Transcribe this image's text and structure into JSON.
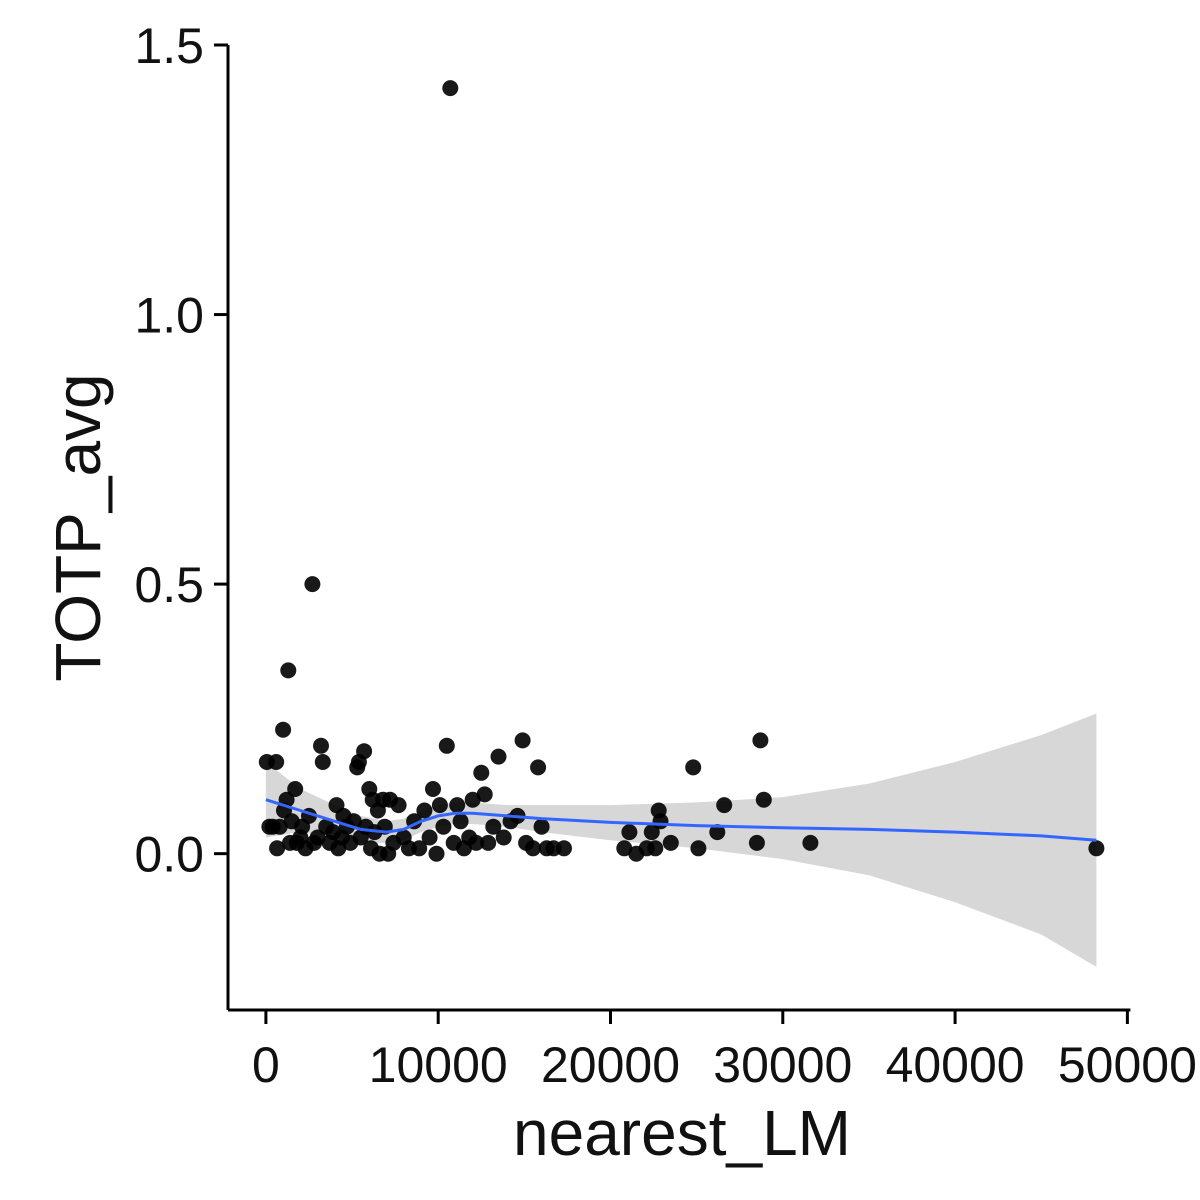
{
  "chart_data": {
    "type": "scatter",
    "xlabel": "nearest_LM",
    "ylabel": "TOTP_avg",
    "xlim": [
      -2200,
      50500
    ],
    "ylim": [
      -0.29,
      1.5
    ],
    "x_ticks": [
      0,
      10000,
      20000,
      30000,
      40000,
      50000
    ],
    "x_tick_labels": [
      "0",
      "10000",
      "20000",
      "30000",
      "40000",
      "50000"
    ],
    "y_ticks": [
      0.0,
      0.5,
      1.0,
      1.5
    ],
    "y_tick_labels": [
      "0.0",
      "0.5",
      "1.0",
      "1.5"
    ],
    "grid": false,
    "legend": "none",
    "colors": {
      "points": "#000000",
      "smooth_line": "#3366ff",
      "ribbon": "#d3d3d3",
      "axis": "#000000"
    },
    "points": [
      [
        50,
        0.17
      ],
      [
        200,
        0.05
      ],
      [
        400,
        0.05
      ],
      [
        600,
        0.17
      ],
      [
        650,
        0.01
      ],
      [
        800,
        0.05
      ],
      [
        1000,
        0.23
      ],
      [
        1050,
        0.08
      ],
      [
        1200,
        0.1
      ],
      [
        1300,
        0.34
      ],
      [
        1400,
        0.02
      ],
      [
        1500,
        0.06
      ],
      [
        1700,
        0.12
      ],
      [
        1800,
        0.02
      ],
      [
        2000,
        0.03
      ],
      [
        2100,
        0.05
      ],
      [
        2300,
        0.01
      ],
      [
        2500,
        0.07
      ],
      [
        2700,
        0.5
      ],
      [
        2800,
        0.02
      ],
      [
        3000,
        0.03
      ],
      [
        3200,
        0.2
      ],
      [
        3300,
        0.17
      ],
      [
        3500,
        0.05
      ],
      [
        3700,
        0.02
      ],
      [
        3900,
        0.04
      ],
      [
        4100,
        0.09
      ],
      [
        4200,
        0.01
      ],
      [
        4400,
        0.03
      ],
      [
        4500,
        0.07
      ],
      [
        4700,
        0.05
      ],
      [
        4900,
        0.02
      ],
      [
        5100,
        0.06
      ],
      [
        5300,
        0.16
      ],
      [
        5400,
        0.17
      ],
      [
        5500,
        0.03
      ],
      [
        5700,
        0.19
      ],
      [
        5800,
        0.05
      ],
      [
        6000,
        0.12
      ],
      [
        6100,
        0.01
      ],
      [
        6200,
        0.1
      ],
      [
        6300,
        0.04
      ],
      [
        6500,
        0.08
      ],
      [
        6600,
        0.0
      ],
      [
        6800,
        0.1
      ],
      [
        6900,
        0.05
      ],
      [
        7100,
        0.0
      ],
      [
        7200,
        0.1
      ],
      [
        7400,
        0.02
      ],
      [
        7700,
        0.09
      ],
      [
        8000,
        0.03
      ],
      [
        8300,
        0.01
      ],
      [
        8600,
        0.06
      ],
      [
        8900,
        0.01
      ],
      [
        9200,
        0.08
      ],
      [
        9500,
        0.03
      ],
      [
        9700,
        0.12
      ],
      [
        9900,
        0.0
      ],
      [
        10100,
        0.09
      ],
      [
        10300,
        0.05
      ],
      [
        10500,
        0.2
      ],
      [
        10700,
        1.42
      ],
      [
        10900,
        0.02
      ],
      [
        11100,
        0.09
      ],
      [
        11300,
        0.06
      ],
      [
        11500,
        0.01
      ],
      [
        11800,
        0.03
      ],
      [
        12000,
        0.1
      ],
      [
        12200,
        0.02
      ],
      [
        12500,
        0.15
      ],
      [
        12700,
        0.11
      ],
      [
        12900,
        0.02
      ],
      [
        13200,
        0.05
      ],
      [
        13500,
        0.18
      ],
      [
        13800,
        0.03
      ],
      [
        14200,
        0.06
      ],
      [
        14600,
        0.07
      ],
      [
        14900,
        0.21
      ],
      [
        15100,
        0.02
      ],
      [
        15500,
        0.01
      ],
      [
        15800,
        0.16
      ],
      [
        16000,
        0.05
      ],
      [
        16300,
        0.01
      ],
      [
        16700,
        0.01
      ],
      [
        17300,
        0.01
      ],
      [
        20800,
        0.01
      ],
      [
        21100,
        0.04
      ],
      [
        21500,
        0.0
      ],
      [
        22100,
        0.01
      ],
      [
        22400,
        0.04
      ],
      [
        22600,
        0.01
      ],
      [
        22800,
        0.08
      ],
      [
        22900,
        0.06
      ],
      [
        23500,
        0.02
      ],
      [
        24800,
        0.16
      ],
      [
        25100,
        0.01
      ],
      [
        26200,
        0.04
      ],
      [
        26600,
        0.09
      ],
      [
        28500,
        0.02
      ],
      [
        28700,
        0.21
      ],
      [
        28900,
        0.1
      ],
      [
        31600,
        0.02
      ],
      [
        48200,
        0.01
      ]
    ],
    "smooth": {
      "x": [
        0,
        2000,
        4000,
        5500,
        7000,
        8000,
        9000,
        10000,
        11000,
        12000,
        14000,
        16000,
        20000,
        25000,
        30000,
        35000,
        40000,
        45000,
        48200
      ],
      "y": [
        0.1,
        0.08,
        0.06,
        0.045,
        0.04,
        0.045,
        0.06,
        0.07,
        0.075,
        0.075,
        0.07,
        0.065,
        0.058,
        0.052,
        0.048,
        0.045,
        0.04,
        0.033,
        0.025
      ],
      "lower": [
        0.03,
        0.04,
        0.03,
        0.02,
        0.02,
        0.025,
        0.04,
        0.05,
        0.055,
        0.055,
        0.05,
        0.04,
        0.025,
        0.01,
        -0.01,
        -0.04,
        -0.09,
        -0.15,
        -0.21
      ],
      "upper": [
        0.17,
        0.12,
        0.09,
        0.07,
        0.06,
        0.065,
        0.08,
        0.09,
        0.095,
        0.095,
        0.09,
        0.09,
        0.09,
        0.095,
        0.105,
        0.13,
        0.17,
        0.22,
        0.26
      ]
    }
  }
}
